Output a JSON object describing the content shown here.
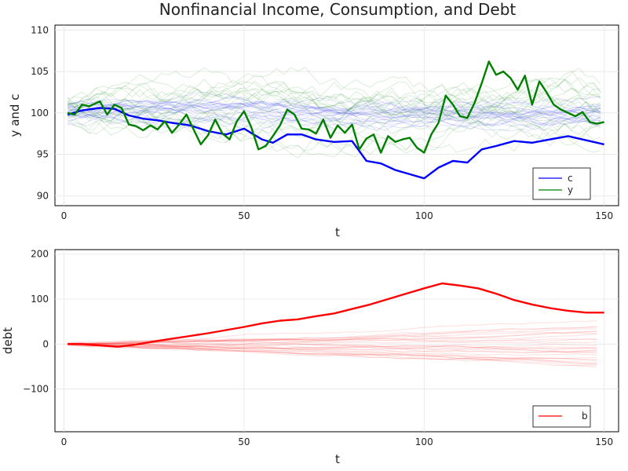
{
  "title": "Nonfinancial Income, Consumption, and Debt",
  "chart_data": [
    {
      "type": "line",
      "xlabel": "t",
      "ylabel": "y and c",
      "xlim": [
        1,
        150
      ],
      "ylim": [
        89,
        111
      ],
      "xticks": [
        0,
        50,
        100,
        150
      ],
      "yticks": [
        90,
        95,
        100,
        105,
        110
      ],
      "ytick_labels": [
        "90",
        "95",
        "100",
        "105",
        "110"
      ],
      "grid": true,
      "legend_position": "bottom-right",
      "series": [
        {
          "name": "c",
          "color": "#0000ff",
          "x": [
            1,
            5,
            10,
            14,
            18,
            22,
            26,
            30,
            35,
            40,
            45,
            50,
            55,
            58,
            62,
            66,
            70,
            75,
            80,
            84,
            88,
            92,
            96,
            100,
            104,
            108,
            112,
            116,
            120,
            125,
            130,
            135,
            140,
            145,
            150
          ],
          "values": [
            99.8,
            100.3,
            100.6,
            100.5,
            99.7,
            99.3,
            99.1,
            98.8,
            98.5,
            97.8,
            97.4,
            98.1,
            96.8,
            96.4,
            97.4,
            97.4,
            96.8,
            96.5,
            96.6,
            94.2,
            93.9,
            93.1,
            92.6,
            92.1,
            93.4,
            94.2,
            94.0,
            95.6,
            96.0,
            96.6,
            96.4,
            96.8,
            97.2,
            96.7,
            96.2
          ]
        },
        {
          "name": "y",
          "color": "#008000",
          "x": [
            1,
            3,
            5,
            7,
            10,
            12,
            14,
            16,
            18,
            20,
            22,
            24,
            26,
            28,
            30,
            32,
            34,
            36,
            38,
            40,
            42,
            44,
            46,
            48,
            50,
            52,
            54,
            56,
            58,
            60,
            62,
            64,
            66,
            68,
            70,
            72,
            74,
            76,
            78,
            80,
            82,
            84,
            86,
            88,
            90,
            92,
            94,
            96,
            98,
            100,
            102,
            104,
            106,
            108,
            110,
            112,
            114,
            116,
            118,
            120,
            122,
            124,
            126,
            128,
            130,
            132,
            134,
            136,
            138,
            140,
            142,
            144,
            146,
            148,
            150
          ],
          "values": [
            100.0,
            99.8,
            101.0,
            100.8,
            101.4,
            99.8,
            101.0,
            100.6,
            98.6,
            98.4,
            97.9,
            98.5,
            98.0,
            99.0,
            97.6,
            98.6,
            99.8,
            98.0,
            96.2,
            97.3,
            99.2,
            97.5,
            96.8,
            99.0,
            100.2,
            98.3,
            95.6,
            96.0,
            97.2,
            98.5,
            100.4,
            99.8,
            98.1,
            98.0,
            97.5,
            99.2,
            97.0,
            98.5,
            97.6,
            98.6,
            95.6,
            96.9,
            97.4,
            95.2,
            97.2,
            96.5,
            96.8,
            97.0,
            95.8,
            95.2,
            97.4,
            98.8,
            102.1,
            101.0,
            99.6,
            99.4,
            101.2,
            103.6,
            106.2,
            104.6,
            105.0,
            104.2,
            102.8,
            104.5,
            101.0,
            103.8,
            102.5,
            101.0,
            100.4,
            100.0,
            99.6,
            100.1,
            98.9,
            98.7,
            98.9
          ]
        }
      ]
    },
    {
      "type": "line",
      "xlabel": "t",
      "ylabel": "debt",
      "xlim": [
        1,
        150
      ],
      "ylim": [
        -195,
        210
      ],
      "xticks": [
        0,
        50,
        100,
        150
      ],
      "yticks": [
        -100,
        0,
        100,
        200
      ],
      "ytick_labels": [
        "−100",
        "0",
        "100",
        "200"
      ],
      "grid": true,
      "legend_position": "bottom-right",
      "series": [
        {
          "name": "b",
          "color": "#ff0000",
          "x": [
            1,
            5,
            10,
            15,
            20,
            25,
            30,
            35,
            40,
            45,
            50,
            55,
            60,
            65,
            70,
            75,
            80,
            85,
            90,
            95,
            100,
            105,
            110,
            115,
            120,
            125,
            130,
            135,
            140,
            145,
            150
          ],
          "values": [
            0,
            0,
            -3,
            -6,
            -1,
            6,
            12,
            18,
            24,
            31,
            38,
            46,
            52,
            55,
            62,
            68,
            78,
            88,
            100,
            112,
            124,
            135,
            130,
            124,
            112,
            98,
            88,
            80,
            74,
            70,
            70
          ]
        }
      ]
    }
  ]
}
